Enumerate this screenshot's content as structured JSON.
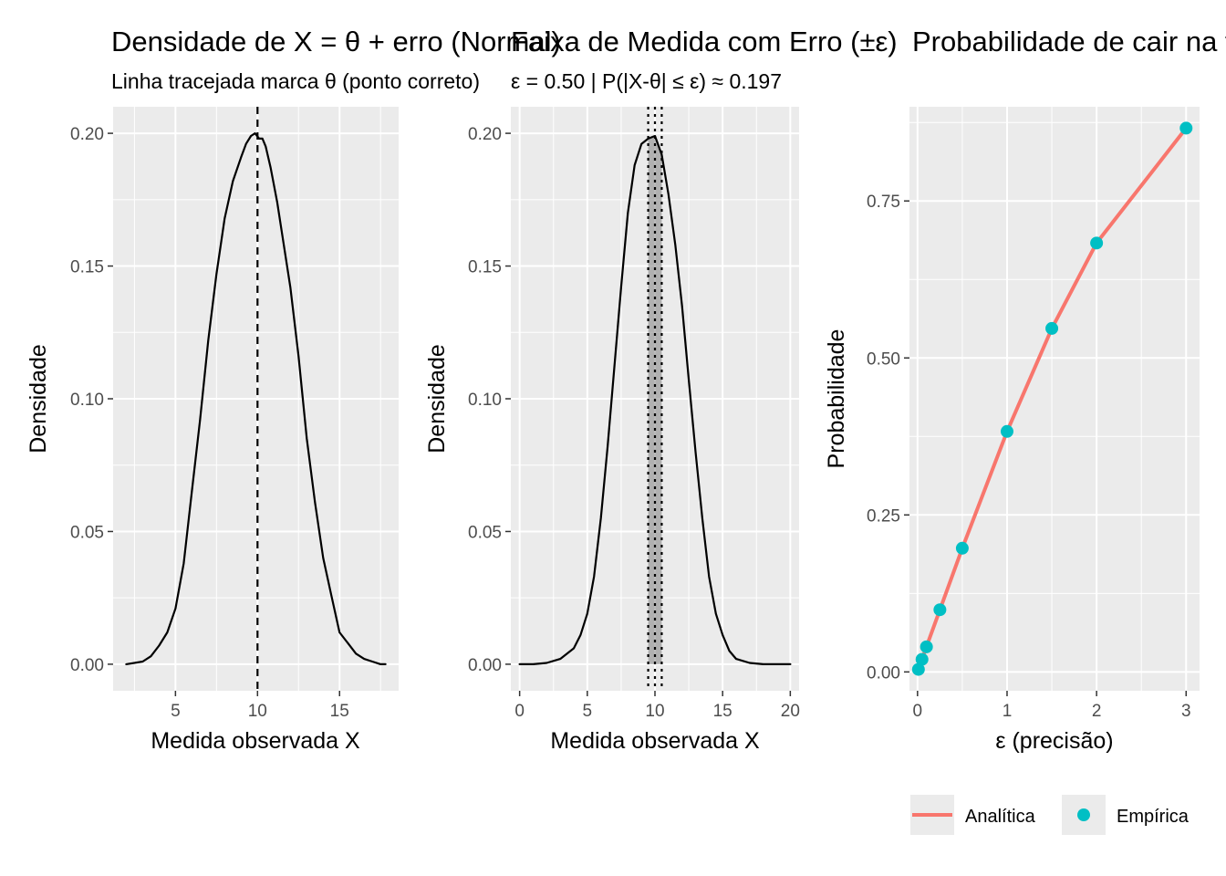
{
  "chart_data": [
    {
      "type": "line",
      "title": "Densidade de X = θ + erro (Normal)",
      "subtitle": "Linha tracejada marca θ (ponto correto)",
      "xlabel": "Medida observada X",
      "ylabel": "Densidade",
      "xlim": [
        1.2,
        18.6
      ],
      "ylim": [
        -0.01,
        0.21
      ],
      "xticks": [
        5,
        10,
        15
      ],
      "yticks": [
        0.0,
        0.05,
        0.1,
        0.15,
        0.2
      ],
      "xtick_labels": [
        "5",
        "10",
        "15"
      ],
      "ytick_labels": [
        "0.00",
        "0.05",
        "0.10",
        "0.15",
        "0.20"
      ],
      "grid": true,
      "theta": 10,
      "series": [
        {
          "x": [
            2.0,
            3.0,
            3.5,
            4.0,
            4.5,
            5.0,
            5.5,
            6.0,
            6.5,
            7.0,
            7.5,
            8.0,
            8.5,
            9.0,
            9.3,
            9.6,
            9.85,
            10.1,
            10.3,
            10.5,
            10.8,
            11.2,
            11.6,
            12.0,
            12.5,
            13.0,
            13.5,
            14.0,
            14.5,
            15.0,
            15.5,
            16.0,
            16.5,
            17.0,
            17.5,
            17.8
          ],
          "y": [
            0.0,
            0.001,
            0.003,
            0.007,
            0.012,
            0.021,
            0.038,
            0.065,
            0.092,
            0.122,
            0.147,
            0.168,
            0.182,
            0.191,
            0.196,
            0.199,
            0.2,
            0.198,
            0.198,
            0.195,
            0.187,
            0.174,
            0.158,
            0.142,
            0.116,
            0.085,
            0.061,
            0.04,
            0.026,
            0.012,
            0.008,
            0.004,
            0.002,
            0.001,
            0.0,
            0.0
          ]
        }
      ]
    },
    {
      "type": "line",
      "title": "Faixa de Medida com Erro (±ε)",
      "subtitle": "ε = 0.50 | P(|X-θ| ≤ ε) ≈ 0.197",
      "xlabel": "Medida observada X",
      "ylabel": "Densidade",
      "xlim": [
        -0.65,
        20.65
      ],
      "ylim": [
        -0.01,
        0.21
      ],
      "xticks": [
        0,
        5,
        10,
        15,
        20
      ],
      "yticks": [
        0.0,
        0.05,
        0.1,
        0.15,
        0.2
      ],
      "xtick_labels": [
        "0",
        "5",
        "10",
        "15",
        "20"
      ],
      "ytick_labels": [
        "0.00",
        "0.05",
        "0.10",
        "0.15",
        "0.20"
      ],
      "grid": true,
      "theta": 10,
      "epsilon": 0.5,
      "shaded_region": [
        9.5,
        10.5
      ],
      "series": [
        {
          "x": [
            0,
            1,
            2,
            3,
            4,
            4.5,
            5,
            5.5,
            6,
            6.5,
            7,
            7.5,
            8,
            8.5,
            9,
            9.5,
            10,
            10.5,
            11,
            11.5,
            12,
            12.5,
            13,
            13.5,
            14,
            14.5,
            15,
            15.5,
            16,
            17,
            18,
            19,
            20
          ],
          "y": [
            0.0,
            0.0,
            0.0005,
            0.002,
            0.006,
            0.011,
            0.019,
            0.033,
            0.055,
            0.082,
            0.112,
            0.142,
            0.17,
            0.188,
            0.196,
            0.198,
            0.199,
            0.192,
            0.177,
            0.158,
            0.135,
            0.107,
            0.08,
            0.055,
            0.033,
            0.019,
            0.011,
            0.005,
            0.002,
            0.0005,
            0.0,
            0.0,
            0.0
          ]
        }
      ]
    },
    {
      "type": "line",
      "title": "Probabilidade de cair na faixa",
      "xlabel": "ε (precisão)",
      "ylabel": "Probabilidade",
      "xlim": [
        -0.09,
        3.15
      ],
      "ylim": [
        -0.03,
        0.9
      ],
      "xticks": [
        0,
        1,
        2,
        3
      ],
      "yticks": [
        0.0,
        0.25,
        0.5,
        0.75
      ],
      "xtick_labels": [
        "0",
        "1",
        "2",
        "3"
      ],
      "ytick_labels": [
        "0.00",
        "0.25",
        "0.50",
        "0.75"
      ],
      "grid": true,
      "legend": "bottom",
      "series": [
        {
          "name": "Analítica",
          "type": "line",
          "color": "#f8766d",
          "x": [
            0.01,
            0.05,
            0.1,
            0.25,
            0.5,
            1.0,
            1.5,
            2.0,
            3.0
          ],
          "y": [
            0.004,
            0.02,
            0.04,
            0.099,
            0.197,
            0.383,
            0.547,
            0.683,
            0.866
          ]
        },
        {
          "name": "Empírica",
          "type": "scatter",
          "color": "#00bfc4",
          "x": [
            0.01,
            0.05,
            0.1,
            0.25,
            0.5,
            1.0,
            1.5,
            2.0,
            3.0
          ],
          "y": [
            0.004,
            0.02,
            0.04,
            0.099,
            0.197,
            0.383,
            0.547,
            0.683,
            0.866
          ]
        }
      ]
    }
  ]
}
